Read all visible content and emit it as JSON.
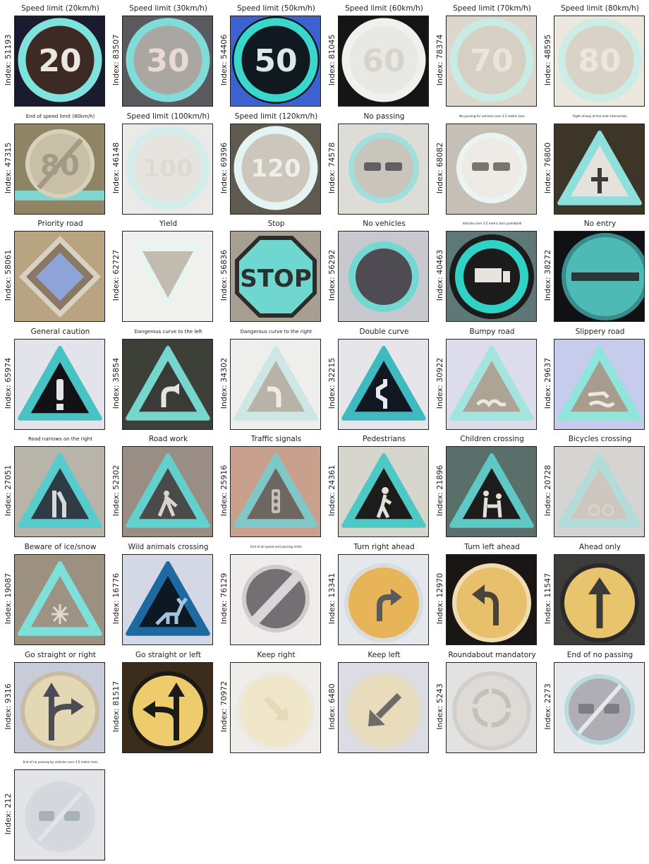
{
  "figure": {
    "cells": [
      {
        "title": "Speed limit (20km/h)",
        "index_label": "Index: 51193",
        "icon": "speed-limit-20-sign-icon",
        "kind": "speed",
        "text": "20",
        "bg": "#1a1b2e",
        "sign": "#3d2a25",
        "ring": "#7fe2dc",
        "fg": "#eae6e0"
      },
      {
        "title": "Speed limit (30km/h)",
        "index_label": "Index: 83507",
        "icon": "speed-limit-30-sign-icon",
        "kind": "speed",
        "text": "30",
        "bg": "#5a5a5e",
        "sign": "#aaa6a2",
        "ring": "#7fdcd8",
        "fg": "#e9d9d4"
      },
      {
        "title": "Speed limit (50km/h)",
        "index_label": "Index: 54406",
        "icon": "speed-limit-50-sign-icon",
        "kind": "speed",
        "text": "50",
        "bg": "#3c62cf",
        "sign": "#101820",
        "ring": "#3ad8cc",
        "fg": "#dfe8e8",
        "ring_outer": "#0a1a24"
      },
      {
        "title": "Speed limit (60km/h)",
        "index_label": "Index: 81045",
        "icon": "speed-limit-60-sign-icon",
        "kind": "speed",
        "text": "60",
        "bg": "#151515",
        "sign": "#e8e8e4",
        "ring": "#f0f0ec",
        "fg": "#d8d4cc"
      },
      {
        "title": "Speed limit (70km/h)",
        "index_label": "Index: 78374",
        "icon": "speed-limit-70-sign-icon",
        "kind": "speed",
        "text": "70",
        "bg": "#dcd6cc",
        "sign": "#d6cfc4",
        "ring": "#c8ece4",
        "fg": "#eae4da"
      },
      {
        "title": "Speed limit (80km/h)",
        "index_label": "Index: 48595",
        "icon": "speed-limit-80-sign-icon",
        "kind": "speed",
        "text": "80",
        "bg": "#ece8de",
        "sign": "#d9d2c6",
        "ring": "#ccece6",
        "fg": "#ece6dc"
      },
      {
        "title": "End of speed limit (80km/h)",
        "index_label": "Index: 47315",
        "icon": "end-speed-limit-80-sign-icon",
        "kind": "end",
        "text": "80",
        "bg": "#8f8464",
        "sign": "#c8bfa6",
        "ring": "#d6d0bc",
        "fg": "#a39a86"
      },
      {
        "title": "Speed limit (100km/h)",
        "index_label": "Index: 46148",
        "icon": "speed-limit-100-sign-icon",
        "kind": "speed",
        "text": "100",
        "bg": "#ebeae6",
        "sign": "#e6e4de",
        "ring": "#d4ecea",
        "fg": "#e0d8d4"
      },
      {
        "title": "Speed limit (120km/h)",
        "index_label": "Index: 69396",
        "icon": "speed-limit-120-sign-icon",
        "kind": "speed",
        "text": "120",
        "bg": "#5e5a50",
        "sign": "#cdc6bc",
        "ring": "#e4f4f2",
        "fg": "#f0eee8"
      },
      {
        "title": "No passing",
        "index_label": "Index: 74578",
        "icon": "no-passing-sign-icon",
        "kind": "nopass",
        "bg": "#dedcd6",
        "sign": "#c9c4bc",
        "ring": "#9fe0dc",
        "fg": "#5f5f64"
      },
      {
        "title": "No passing for vehicles over 3.5 metric tons",
        "index_label": "Index: 68082",
        "icon": "no-passing-trucks-sign-icon",
        "kind": "nopass",
        "bg": "#c6bfb5",
        "sign": "#eeebe6",
        "ring": "#ecf4f2",
        "fg": "#7a7470"
      },
      {
        "title": "Right-of-way at the next intersection",
        "index_label": "Index: 76800",
        "icon": "right-of-way-sign-icon",
        "kind": "tri",
        "bg": "#3d3528",
        "sign": "#e5e2dc",
        "ring": "#8fe0dc",
        "fg": "#3a3a3a"
      },
      {
        "title": "Priority road",
        "index_label": "Index: 58061",
        "icon": "priority-road-sign-icon",
        "kind": "diamond",
        "bg": "#b8a480",
        "sign": "#8a7864",
        "ring": "#d8d2c4",
        "fg": "#8ea4d8"
      },
      {
        "title": "Yield",
        "index_label": "Index: 62727",
        "icon": "yield-sign-icon",
        "kind": "yield",
        "bg": "#f0f0ee",
        "sign": "#c1bbb0",
        "ring": "#e8f4f0",
        "fg": "#c1bbb0"
      },
      {
        "title": "Stop",
        "index_label": "Index: 56836",
        "icon": "stop-sign-icon",
        "kind": "stop",
        "text": "STOP",
        "bg": "#a7a092",
        "sign": "#6fd6d0",
        "ring": "#2c2c2c",
        "fg": "#2c3030"
      },
      {
        "title": "No vehicles",
        "index_label": "Index: 56292",
        "icon": "no-vehicles-sign-icon",
        "kind": "novehicle",
        "bg": "#c8c9ce",
        "sign": "#4e4c52",
        "ring": "#74d8d2",
        "fg": "#4e4c52"
      },
      {
        "title": "Vehicles over 3.5 metric tons prohibited",
        "index_label": "Index: 40463",
        "icon": "trucks-prohibited-sign-icon",
        "kind": "truck",
        "bg": "#5e7878",
        "sign": "#e7e4e0",
        "ring": "#2fd2c4",
        "fg": "#1b1b1b"
      },
      {
        "title": "No entry",
        "index_label": "Index: 38272",
        "icon": "no-entry-sign-icon",
        "kind": "noentry",
        "bg": "#101015",
        "sign": "#4ebab6",
        "ring": "#3a8c8c",
        "fg": "#2c3838"
      },
      {
        "title": "General caution",
        "index_label": "Index: 65974",
        "icon": "general-caution-sign-icon",
        "kind": "caution",
        "bg": "#e3e3ec",
        "sign": "#111116",
        "ring": "#47c3c4",
        "fg": "#e4e4e4"
      },
      {
        "title": "Dangerous curve to the left",
        "index_label": "Index: 35854",
        "icon": "curve-left-sign-icon",
        "kind": "tri",
        "sym": "curve-l",
        "bg": "#3c4038",
        "sign": "#3a3a36",
        "ring": "#74d6cc",
        "fg": "#e7e4df"
      },
      {
        "title": "Dangerous curve to the right",
        "index_label": "Index: 34302",
        "icon": "curve-right-sign-icon",
        "kind": "tri",
        "sym": "curve-r",
        "bg": "#eeeeec",
        "sign": "#b9b2a8",
        "ring": "#cde8e4",
        "fg": "#ecebe6"
      },
      {
        "title": "Double curve",
        "index_label": "Index: 32215",
        "icon": "double-curve-sign-icon",
        "kind": "tri",
        "sym": "double",
        "bg": "#e5e5ea",
        "sign": "#121821",
        "ring": "#3fbac0",
        "fg": "#e8e8f0"
      },
      {
        "title": "Bumpy road",
        "index_label": "Index: 30922",
        "icon": "bumpy-road-sign-icon",
        "kind": "tri",
        "sym": "bump",
        "bg": "#dcdcec",
        "sign": "#aea496",
        "ring": "#a3e4de",
        "fg": "#ece8e0"
      },
      {
        "title": "Slippery road",
        "index_label": "Index: 29637",
        "icon": "slippery-road-sign-icon",
        "kind": "tri",
        "sym": "slip",
        "bg": "#c8ccec",
        "sign": "#a89c8c",
        "ring": "#8fe4dc",
        "fg": "#ebe8e0"
      },
      {
        "title": "Road narrows on the right",
        "index_label": "Index: 27051",
        "icon": "road-narrows-sign-icon",
        "kind": "tri",
        "sym": "narrow",
        "bg": "#b8b4aa",
        "sign": "#2e3a44",
        "ring": "#58cccc",
        "fg": "#d8d8d8"
      },
      {
        "title": "Road work",
        "index_label": "Index: 52302",
        "icon": "road-work-sign-icon",
        "kind": "tri",
        "sym": "work",
        "bg": "#9a8e84",
        "sign": "#4a4a4a",
        "ring": "#62d0cc",
        "fg": "#d8d4cc"
      },
      {
        "title": "Traffic signals",
        "index_label": "Index: 25916",
        "icon": "traffic-signals-sign-icon",
        "kind": "tri",
        "sym": "signal",
        "bg": "#c9a08c",
        "sign": "#6e6660",
        "ring": "#80c8c8",
        "fg": "#c8c0b8"
      },
      {
        "title": "Pedestrians",
        "index_label": "Index: 24361",
        "icon": "pedestrians-sign-icon",
        "kind": "tri",
        "sym": "ped",
        "bg": "#d6d6cc",
        "sign": "#1c1c1c",
        "ring": "#4ec8c4",
        "fg": "#e4e0d8"
      },
      {
        "title": "Children crossing",
        "index_label": "Index: 21896",
        "icon": "children-crossing-sign-icon",
        "kind": "tri",
        "sym": "kids",
        "bg": "#5a6e6a",
        "sign": "#1c1c1c",
        "ring": "#5ec8c4",
        "fg": "#e4e0d8"
      },
      {
        "title": "Bicycles crossing",
        "index_label": "Index: 20728",
        "icon": "bicycles-crossing-sign-icon",
        "kind": "tri",
        "sym": "bike",
        "bg": "#d6d4d2",
        "sign": "#cdc7c0",
        "ring": "#b3dcd8",
        "fg": "#d8d4cc"
      },
      {
        "title": "Beware of ice/snow",
        "index_label": "Index: 19087",
        "icon": "ice-snow-sign-icon",
        "kind": "tri",
        "sym": "snow",
        "bg": "#9c9080",
        "sign": "#9e9284",
        "ring": "#7ee0d8",
        "fg": "#e0dcd4"
      },
      {
        "title": "Wild animals crossing",
        "index_label": "Index: 16776",
        "icon": "wild-animals-sign-icon",
        "kind": "tri",
        "sym": "deer",
        "bg": "#d4d8e4",
        "sign": "#0c1822",
        "ring": "#1e6aa0",
        "fg": "#a4c4dc"
      },
      {
        "title": "End of all speed and passing limits",
        "index_label": "Index: 76129",
        "icon": "end-all-limits-sign-icon",
        "kind": "endall",
        "bg": "#f0ecec",
        "sign": "#727072",
        "ring": "#cfcccc",
        "fg": "#d8d6d6"
      },
      {
        "title": "Turn right ahead",
        "index_label": "Index: 13341",
        "icon": "turn-right-ahead-sign-icon",
        "kind": "blue",
        "sym": "turn-r",
        "bg": "#e4e8ec",
        "sign": "#e7b458",
        "ring": "#d9dcdc",
        "fg": "#5a5a5a"
      },
      {
        "title": "Turn left ahead",
        "index_label": "Index: 12970",
        "icon": "turn-left-ahead-sign-icon",
        "kind": "blue",
        "sym": "turn-l",
        "bg": "#1a1616",
        "sign": "#e8bf6a",
        "ring": "#efdcb0",
        "fg": "#4a4438"
      },
      {
        "title": "Ahead only",
        "index_label": "Index: 11547",
        "icon": "ahead-only-sign-icon",
        "kind": "blue",
        "sym": "ahead",
        "bg": "#3c3c3a",
        "sign": "#e8c46c",
        "ring": "#2a2a2a",
        "fg": "#3a3a38"
      },
      {
        "title": "Go straight or right",
        "index_label": "Index: 9316",
        "icon": "straight-or-right-sign-icon",
        "kind": "blue",
        "sym": "straight-r",
        "bg": "#c8ccd8",
        "sign": "#e4d8b4",
        "ring": "#c8bda4",
        "fg": "#4c4c56"
      },
      {
        "title": "Go straight or left",
        "index_label": "Index: 81517",
        "icon": "straight-or-left-sign-icon",
        "kind": "blue",
        "sym": "straight-l",
        "bg": "#3c2c1c",
        "sign": "#eecb6c",
        "ring": "#1a1a16",
        "fg": "#1a1a16"
      },
      {
        "title": "Keep right",
        "index_label": "Index: 70972",
        "icon": "keep-right-sign-icon",
        "kind": "blue",
        "sym": "keep-r",
        "bg": "#efedea",
        "sign": "#f0e6ca",
        "ring": "#ece8e2",
        "fg": "#e6d8b8"
      },
      {
        "title": "Keep left",
        "index_label": "Index: 6480",
        "icon": "keep-left-sign-icon",
        "kind": "blue",
        "sym": "keep-l",
        "bg": "#dcdce4",
        "sign": "#e8dcbc",
        "ring": "#e0dcd0",
        "fg": "#6e6a66"
      },
      {
        "title": "Roundabout mandatory",
        "index_label": "Index: 5243",
        "icon": "roundabout-sign-icon",
        "kind": "blue",
        "sym": "round",
        "bg": "#e2e2e2",
        "sign": "#dedad6",
        "ring": "#d2cecb",
        "fg": "#c4c0bc"
      },
      {
        "title": "End of no passing",
        "index_label": "Index: 2273",
        "icon": "end-no-passing-sign-icon",
        "kind": "endnp",
        "bg": "#e6e8ec",
        "sign": "#aeaeb4",
        "ring": "#b9dcdc",
        "fg": "#7e7c84"
      },
      {
        "title": "End of no passing by vehicles over 3.5 metric tons",
        "index_label": "Index: 212",
        "icon": "end-no-passing-trucks-sign-icon",
        "kind": "endnp",
        "bg": "#e2e4e8",
        "sign": "#d4d8de",
        "ring": "#d6dadc",
        "fg": "#a8b0ba"
      }
    ]
  }
}
